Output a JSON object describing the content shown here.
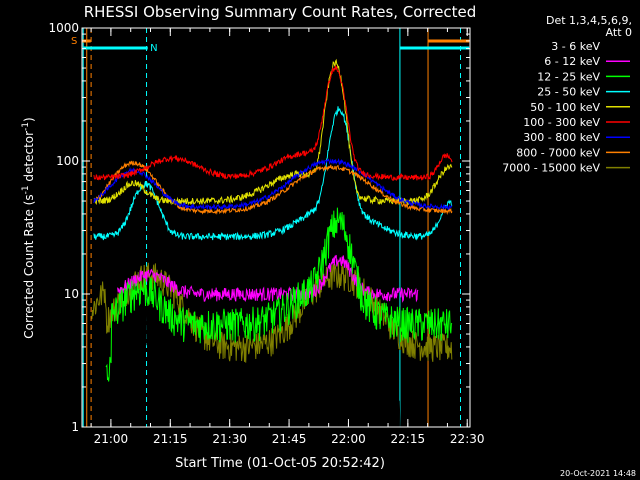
{
  "chart_data": {
    "type": "line",
    "title": "RHESSI Observing Summary Count Rates, Corrected",
    "xlabel": "Start Time (01-Oct-05 20:52:42)",
    "ylabel_main": "Corrected Count Rate (s",
    "ylabel_sup1": "-1",
    "ylabel_mid": " detector",
    "ylabel_sup2": "-1",
    "ylabel_end": ")",
    "y_scale": "log",
    "ylim": [
      1,
      1000
    ],
    "xlim_minutes_after_2052_42": [
      0,
      98
    ],
    "x_ticks": [
      {
        "label": "21:00",
        "minute": 7.3
      },
      {
        "label": "21:15",
        "minute": 22.3
      },
      {
        "label": "21:30",
        "minute": 37.3
      },
      {
        "label": "21:45",
        "minute": 52.3
      },
      {
        "label": "22:00",
        "minute": 67.3
      },
      {
        "label": "22:15",
        "minute": 82.3
      },
      {
        "label": "22:30",
        "minute": 97.3
      }
    ],
    "y_ticks": [
      {
        "label": "1",
        "value": 1
      },
      {
        "label": "10",
        "value": 10
      },
      {
        "label": "100",
        "value": 100
      },
      {
        "label": "1000",
        "value": 1000
      }
    ],
    "legend_header": [
      "Det 1,3,4,5,6,9,",
      "Att 0"
    ],
    "legend_placement": "right",
    "series": [
      {
        "name": "3 - 6 keV",
        "color": "#000000"
      },
      {
        "name": "6 - 12 keV",
        "color": "#ff00ff"
      },
      {
        "name": "12 - 25 keV",
        "color": "#00ff00"
      },
      {
        "name": "25 - 50 keV",
        "color": "#00ffff"
      },
      {
        "name": "50 - 100 keV",
        "color": "#e0e000"
      },
      {
        "name": "100 - 300 keV",
        "color": "#ff0000"
      },
      {
        "name": "300 - 800 keV",
        "color": "#0000ff"
      },
      {
        "name": "800 - 7000 keV",
        "color": "#ff8000"
      },
      {
        "name": "7000 - 15000 keV",
        "color": "#808000"
      }
    ],
    "flags": {
      "S_label": "S",
      "N_label": "N",
      "S_color": "#ff8000",
      "N_color": "#00ffff"
    },
    "timestamp": "20-Oct-2021 14:48"
  }
}
